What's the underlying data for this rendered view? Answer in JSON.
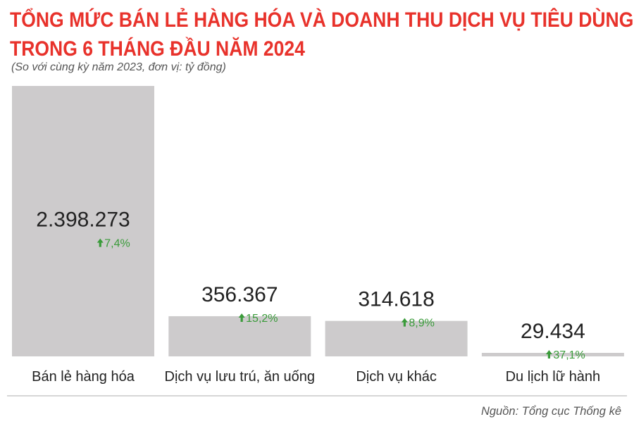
{
  "header": {
    "title_line1": "TỔNG MỨC BÁN LẺ HÀNG HÓA VÀ DOANH THU DỊCH VỤ TIÊU DÙNG",
    "title_line2": "TRONG 6 THÁNG ĐẦU NĂM 2024",
    "subtitle": "(So với cùng kỳ năm 2023, đơn vị: tỷ đồng)"
  },
  "footer": {
    "source": "Nguồn: Tổng cục Thống kê"
  },
  "colors": {
    "title": "#e8322b",
    "bar": "#cdcbcc",
    "value_text": "#222222",
    "growth_text": "#3a9b3a",
    "axis_line": "#bdbdbd"
  },
  "chart_data": {
    "type": "bar",
    "categories": [
      "Bán lẻ hàng hóa",
      "Dịch vụ lưu trú, ăn uống",
      "Dịch vụ khác",
      "Du lịch lữ hành"
    ],
    "values": [
      2398273,
      356367,
      314618,
      29434
    ],
    "value_labels": [
      "2.398.273",
      "356.367",
      "314.618",
      "29.434"
    ],
    "growth_labels": [
      "7,4%",
      "15,2%",
      "8,9%",
      "37,1%"
    ],
    "growth_direction": "up",
    "ylim": [
      0,
      2398273
    ],
    "grid": false,
    "legend": "none"
  }
}
